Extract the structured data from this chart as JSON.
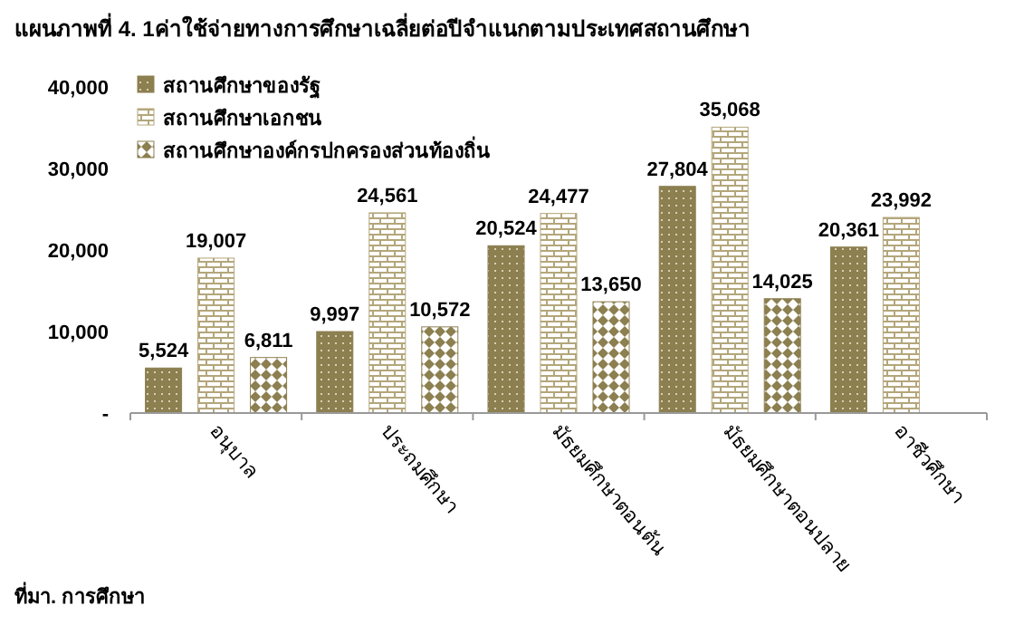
{
  "chart_data": {
    "type": "bar",
    "title": "แผนภาพที่ 4. 1ค่าใช้จ่ายทางการศึกษาเฉลี่ยต่อปีจำแนกตามประเทศสถานศึกษา",
    "categories": [
      "อนุบาล",
      "ประถมศึกษา",
      "มัธยมศึกษาตอนต้น",
      "มัธยมศึกษาตอนปลาย",
      "อาชีวศึกษา"
    ],
    "series": [
      {
        "name": "สถานศึกษาของรัฐ",
        "color": "#8c7f50",
        "values": [
          5524,
          9997,
          20524,
          27804,
          20361
        ],
        "value_labels": [
          "5,524",
          "9,997",
          "20,524",
          "27,804",
          "20,361"
        ]
      },
      {
        "name": "สถานศึกษาเอกชน",
        "color": "#b3a67a",
        "values": [
          19007,
          24561,
          24477,
          35068,
          23992
        ],
        "value_labels": [
          "19,007",
          "24,561",
          "24,477",
          "35,068",
          "23,992"
        ]
      },
      {
        "name": "สถานศึกษาองค์กรปกครองส่วนท้องถิ่น",
        "color": "#8c7f50",
        "values": [
          6811,
          10572,
          13650,
          14025,
          null
        ],
        "value_labels": [
          "6,811",
          "10,572",
          "13,650",
          "14,025",
          null
        ]
      }
    ],
    "ylim": [
      0,
      40000
    ],
    "yticks": [
      {
        "value": 0,
        "label": "-"
      },
      {
        "value": 10000,
        "label": "10,000"
      },
      {
        "value": 20000,
        "label": "20,000"
      },
      {
        "value": 30000,
        "label": "30,000"
      },
      {
        "value": 40000,
        "label": "40,000"
      }
    ],
    "legend": "top left",
    "grid": false,
    "annotations": [
      "ที่มา. การศึกษา"
    ]
  }
}
